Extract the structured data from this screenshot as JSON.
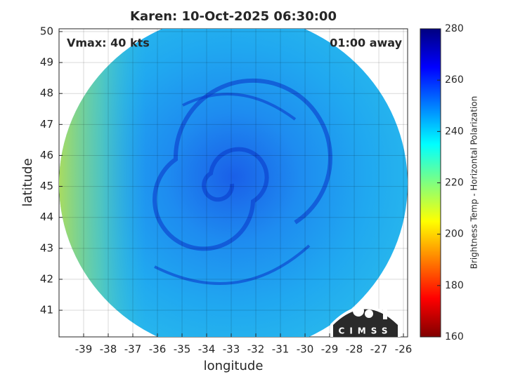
{
  "chart_data": {
    "type": "map",
    "title": "Karen: 10-Oct-2025 06:30:00",
    "annotations": [
      "Vmax: 40 kts",
      "01:00 away"
    ],
    "x_label": "longitude",
    "y_label": "latitude",
    "xlim": [
      -40,
      -25.83
    ],
    "xticks": [
      -39,
      -38,
      -37,
      -36,
      -35,
      -34,
      -33,
      -32,
      -31,
      -30,
      -29,
      -28,
      -27,
      -26
    ],
    "ylim": [
      40.14,
      50.09
    ],
    "yticks": [
      41,
      42,
      43,
      44,
      45,
      46,
      47,
      48,
      49,
      50
    ],
    "grid": true,
    "colorbar": {
      "label": "Brightness Temp - Horizontal Polarization",
      "clim": [
        160,
        280
      ],
      "ticks": [
        160,
        180,
        200,
        220,
        240,
        260,
        280
      ],
      "colormap": "jet"
    },
    "logo": "CIMSS"
  }
}
